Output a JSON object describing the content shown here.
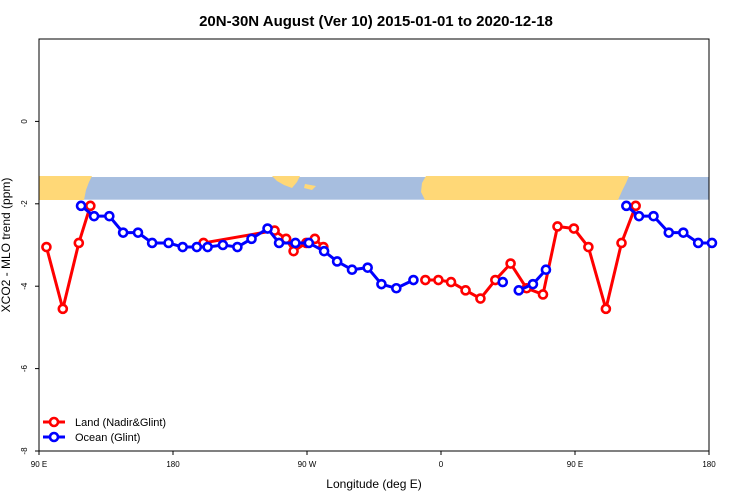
{
  "chart_data": {
    "type": "line",
    "title": "20N-30N August (Ver 10)   2015-01-01 to 2020-12-18",
    "xlabel": "Longitude (deg E)",
    "ylabel": "XCO2 - MLO trend (ppm)",
    "xlim": [
      90,
      270
    ],
    "ylim": [
      -8,
      2
    ],
    "x_ticks": [
      {
        "value": 90,
        "label": "90 E"
      },
      {
        "value": 126,
        "label": "180"
      },
      {
        "value": 162,
        "label": "90 W"
      },
      {
        "value": 198,
        "label": "0"
      },
      {
        "value": 234,
        "label": "90 E"
      },
      {
        "value": 270,
        "label": "180"
      }
    ],
    "y_ticks": [
      {
        "value": 0,
        "label": "0"
      },
      {
        "value": -2,
        "label": "-2"
      },
      {
        "value": -4,
        "label": "-4"
      },
      {
        "value": -6,
        "label": "-6"
      },
      {
        "value": -8,
        "label": "-8"
      }
    ],
    "map_strip": {
      "y_top": -1.35,
      "y_bottom": -1.9,
      "land_color": "#ffd877",
      "ocean_color": "#a7bedf"
    },
    "legend_position": "bottom-left",
    "series": [
      {
        "name": "Land (Nadir&Glint)",
        "color": "#ff0000",
        "segments": [
          [
            [
              92,
              -3.05
            ],
            [
              96.4,
              -4.55
            ],
            [
              100.7,
              -2.95
            ],
            [
              103.8,
              -2.05
            ]
          ],
          [
            [
              134.2,
              -2.95
            ],
            [
              153.3,
              -2.65
            ],
            [
              156.4,
              -2.85
            ],
            [
              158.4,
              -3.15
            ],
            [
              161.8,
              -2.95
            ],
            [
              164.1,
              -2.85
            ],
            [
              166.4,
              -3.05
            ]
          ],
          [
            [
              193.8,
              -3.85
            ],
            [
              197.3,
              -3.85
            ],
            [
              200.7,
              -3.9
            ],
            [
              204.6,
              -4.1
            ],
            [
              208.6,
              -4.3
            ],
            [
              212.6,
              -3.85
            ],
            [
              216.7,
              -3.45
            ],
            [
              221,
              -4.05
            ],
            [
              225.4,
              -4.2
            ],
            [
              229.3,
              -2.55
            ],
            [
              233.7,
              -2.6
            ],
            [
              237.6,
              -3.05
            ],
            [
              242.3,
              -4.55
            ],
            [
              246.5,
              -2.95
            ],
            [
              250.3,
              -2.05
            ]
          ]
        ]
      },
      {
        "name": "Ocean (Glint)",
        "color": "#0000ff",
        "segments": [
          [
            [
              101.3,
              -2.05
            ],
            [
              104.8,
              -2.3
            ],
            [
              108.9,
              -2.3
            ],
            [
              112.6,
              -2.7
            ],
            [
              116.6,
              -2.7
            ],
            [
              120.4,
              -2.95
            ],
            [
              124.8,
              -2.95
            ],
            [
              128.6,
              -3.05
            ],
            [
              132.4,
              -3.05
            ],
            [
              135.3,
              -3.05
            ],
            [
              139.4,
              -3
            ],
            [
              143.3,
              -3.05
            ],
            [
              147.1,
              -2.85
            ],
            [
              151.4,
              -2.6
            ],
            [
              154.5,
              -2.95
            ],
            [
              158.9,
              -2.95
            ],
            [
              162.5,
              -2.95
            ],
            [
              166.6,
              -3.15
            ],
            [
              170.1,
              -3.4
            ],
            [
              174.1,
              -3.6
            ],
            [
              178.3,
              -3.55
            ],
            [
              182,
              -3.95
            ],
            [
              186,
              -4.05
            ],
            [
              190.6,
              -3.85
            ]
          ],
          [
            [
              214.6,
              -3.9
            ]
          ],
          [
            [
              218.9,
              -4.1
            ],
            [
              222.7,
              -3.95
            ],
            [
              226.2,
              -3.6
            ]
          ],
          [
            [
              247.8,
              -2.05
            ],
            [
              251.2,
              -2.3
            ],
            [
              255.1,
              -2.3
            ],
            [
              259.2,
              -2.7
            ],
            [
              263.1,
              -2.7
            ],
            [
              267.1,
              -2.95
            ],
            [
              270.8,
              -2.95
            ]
          ]
        ]
      }
    ]
  }
}
